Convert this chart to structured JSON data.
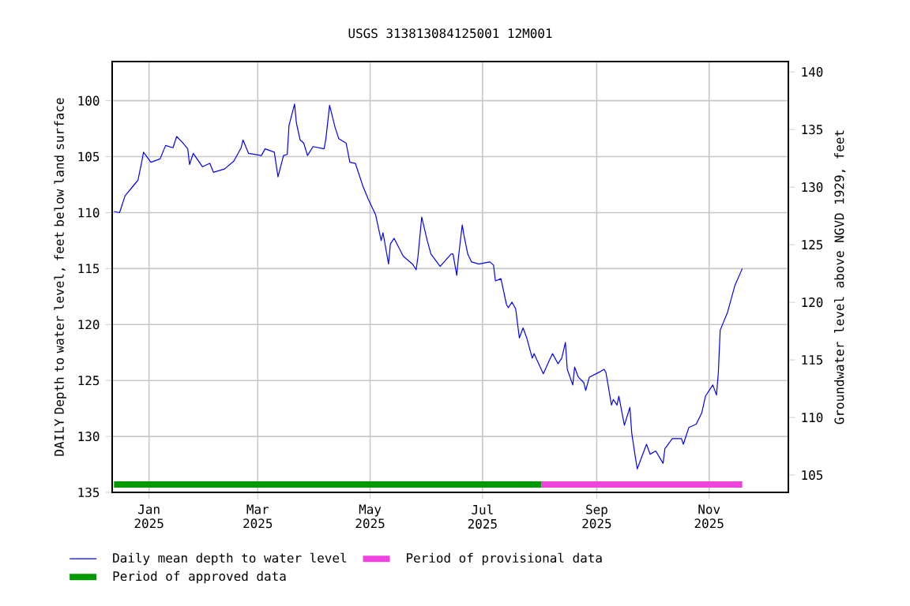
{
  "chart_data": {
    "type": "line",
    "title": "USGS 313813084125001 12M001",
    "ylabel": "DAILY Depth to water level, feet below land surface",
    "y2label": "Groundwater level above NGVD 1929, feet",
    "x": [
      "2024-12-13",
      "2024-12-16",
      "2024-12-19",
      "2024-12-24",
      "2024-12-26",
      "2024-12-28",
      "2024-12-29",
      "2025-01-02",
      "2025-01-07",
      "2025-01-10",
      "2025-01-14",
      "2025-01-16",
      "2025-01-19",
      "2025-01-22",
      "2025-01-23",
      "2025-01-25",
      "2025-01-30",
      "2025-02-03",
      "2025-02-05",
      "2025-02-11",
      "2025-02-16",
      "2025-02-20",
      "2025-02-21",
      "2025-02-24",
      "2025-03-03",
      "2025-03-05",
      "2025-03-10",
      "2025-03-12",
      "2025-03-15",
      "2025-03-17",
      "2025-03-18",
      "2025-03-21",
      "2025-03-22",
      "2025-03-24",
      "2025-03-26",
      "2025-03-28",
      "2025-03-31",
      "2025-04-06",
      "2025-04-07",
      "2025-04-09",
      "2025-04-12",
      "2025-04-14",
      "2025-04-18",
      "2025-04-20",
      "2025-04-23",
      "2025-04-27",
      "2025-04-30",
      "2025-05-04",
      "2025-05-07",
      "2025-05-08",
      "2025-05-11",
      "2025-05-12",
      "2025-05-14",
      "2025-05-19",
      "2025-05-24",
      "2025-05-26",
      "2025-05-27",
      "2025-05-29",
      "2025-06-01",
      "2025-06-03",
      "2025-06-08",
      "2025-06-14",
      "2025-06-15",
      "2025-06-17",
      "2025-06-18",
      "2025-06-20",
      "2025-06-21",
      "2025-06-23",
      "2025-06-25",
      "2025-06-29",
      "2025-07-05",
      "2025-07-07",
      "2025-07-08",
      "2025-07-11",
      "2025-07-14",
      "2025-07-15",
      "2025-07-17",
      "2025-07-19",
      "2025-07-21",
      "2025-07-23",
      "2025-07-25",
      "2025-07-28",
      "2025-07-29",
      "2025-08-03",
      "2025-08-06",
      "2025-08-08",
      "2025-08-11",
      "2025-08-13",
      "2025-08-15",
      "2025-08-16",
      "2025-08-19",
      "2025-08-20",
      "2025-08-22",
      "2025-08-25",
      "2025-08-26",
      "2025-08-28",
      "2025-09-03",
      "2025-09-05",
      "2025-09-06",
      "2025-09-09",
      "2025-09-10",
      "2025-09-12",
      "2025-09-13",
      "2025-09-16",
      "2025-09-19",
      "2025-09-20",
      "2025-09-22",
      "2025-09-23",
      "2025-09-28",
      "2025-09-30",
      "2025-10-03",
      "2025-10-07",
      "2025-10-08",
      "2025-10-12",
      "2025-10-17",
      "2025-10-18",
      "2025-10-21",
      "2025-10-25",
      "2025-10-28",
      "2025-10-30",
      "2025-11-03",
      "2025-11-05",
      "2025-11-06",
      "2025-11-07",
      "2025-11-11",
      "2025-11-15",
      "2025-11-19"
    ],
    "series": [
      {
        "name": "Daily mean depth to water level",
        "color": "#0000ff",
        "values": [
          109.9,
          110.0,
          108.5,
          107.5,
          107.1,
          105.5,
          104.6,
          105.5,
          105.2,
          104.0,
          104.2,
          103.2,
          103.7,
          104.3,
          105.7,
          104.7,
          105.9,
          105.6,
          106.4,
          106.1,
          105.4,
          104.2,
          103.5,
          104.7,
          104.9,
          104.3,
          104.6,
          106.8,
          104.9,
          104.8,
          102.2,
          100.3,
          102.0,
          103.5,
          103.8,
          104.9,
          104.1,
          104.3,
          103.4,
          100.4,
          102.4,
          103.4,
          103.8,
          105.5,
          105.6,
          107.6,
          108.8,
          110.2,
          112.5,
          111.8,
          114.6,
          112.8,
          112.3,
          113.9,
          114.6,
          115.1,
          113.9,
          110.4,
          112.5,
          113.7,
          114.8,
          113.7,
          113.7,
          115.6,
          113.9,
          111.1,
          112.1,
          113.7,
          114.4,
          114.6,
          114.4,
          114.7,
          116.1,
          115.9,
          118.2,
          118.5,
          118.0,
          118.6,
          121.2,
          120.3,
          121.2,
          123.0,
          122.6,
          124.4,
          123.3,
          122.6,
          123.5,
          123.0,
          121.6,
          124.0,
          125.4,
          123.8,
          124.7,
          125.2,
          125.9,
          124.7,
          124.2,
          124.0,
          124.3,
          127.2,
          126.7,
          127.2,
          126.4,
          129.0,
          127.4,
          129.7,
          131.9,
          132.9,
          130.7,
          131.6,
          131.3,
          132.4,
          131.1,
          130.2,
          130.2,
          130.7,
          129.2,
          128.9,
          127.9,
          126.4,
          125.4,
          126.3,
          124.3,
          120.5,
          118.9,
          116.5,
          115.0
        ]
      },
      {
        "name": "Period of provisional data",
        "color": "#ee44dd",
        "x": [
          "2025-08-02",
          "2025-11-19"
        ],
        "values": [
          134.3,
          134.3
        ]
      },
      {
        "name": "Period of approved data",
        "color": "#009900",
        "x": [
          "2024-12-13",
          "2025-08-02"
        ],
        "values": [
          134.3,
          134.3
        ]
      }
    ],
    "xlim": [
      "2024-12-12",
      "2025-12-14"
    ],
    "xticks": [
      {
        "value": "2025-01-01",
        "label": "Jan 2025"
      },
      {
        "value": "2025-03-01",
        "label": "Mar 2025"
      },
      {
        "value": "2025-05-01",
        "label": "May 2025"
      },
      {
        "value": "2025-07-01",
        "label": "Jul 2025"
      },
      {
        "value": "2025-09-01",
        "label": "Sep 2025"
      },
      {
        "value": "2025-11-01",
        "label": "Nov 2025"
      }
    ],
    "ylim": [
      135,
      96.5
    ],
    "yticks": [
      100,
      105,
      110,
      115,
      120,
      125,
      130,
      135
    ],
    "y2lim": [
      103.5,
      140.9
    ],
    "y2ticks": [
      105,
      110,
      115,
      120,
      125,
      130,
      135,
      140
    ],
    "grid": true,
    "legend": "bottom",
    "marker": "none",
    "line_style": "solid"
  }
}
